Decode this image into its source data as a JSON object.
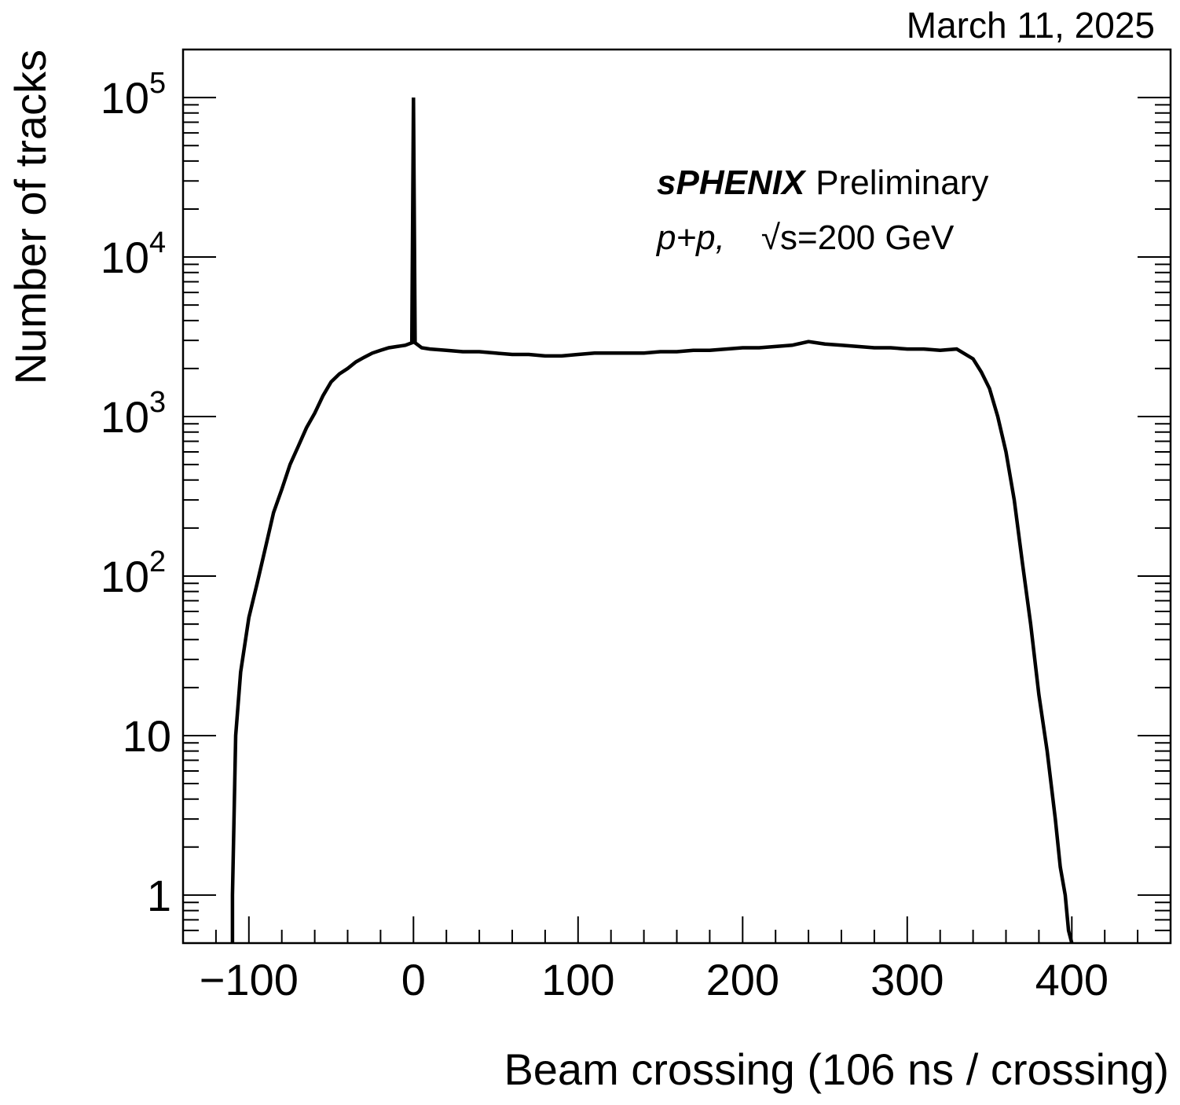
{
  "date_stamp": "March 11, 2025",
  "annotation": {
    "experiment": "sPHENIX",
    "status": "Preliminary",
    "system": "p+p,",
    "energy_symbol": "√s",
    "energy_value": "=200 GeV"
  },
  "chart_data": {
    "type": "histogram",
    "title": "",
    "xlabel": "Beam crossing (106 ns / crossing)",
    "ylabel": "Number of tracks",
    "xlim": [
      -140,
      460
    ],
    "ylim": [
      0.5,
      200000
    ],
    "yscale": "log",
    "grid": false,
    "x_ticks": [
      -100,
      0,
      100,
      200,
      300,
      400
    ],
    "x_tick_labels": [
      "−100",
      "0",
      "100",
      "200",
      "300",
      "400"
    ],
    "y_ticks": [
      1,
      10,
      100,
      1000,
      10000,
      100000
    ],
    "y_tick_labels": [
      {
        "base": "1",
        "exp": ""
      },
      {
        "base": "10",
        "exp": ""
      },
      {
        "base": "10",
        "exp": "2"
      },
      {
        "base": "10",
        "exp": "3"
      },
      {
        "base": "10",
        "exp": "4"
      },
      {
        "base": "10",
        "exp": "5"
      }
    ],
    "series": [
      {
        "color": "#000000",
        "x": [
          -110,
          -108,
          -105,
          -100,
          -95,
          -90,
          -85,
          -80,
          -75,
          -70,
          -65,
          -60,
          -55,
          -50,
          -45,
          -40,
          -35,
          -30,
          -25,
          -20,
          -15,
          -10,
          -5,
          -1,
          0,
          1,
          5,
          10,
          20,
          30,
          40,
          50,
          60,
          70,
          80,
          90,
          100,
          110,
          120,
          130,
          140,
          150,
          160,
          170,
          180,
          190,
          200,
          210,
          220,
          230,
          240,
          250,
          260,
          270,
          280,
          290,
          300,
          310,
          320,
          330,
          340,
          345,
          350,
          355,
          360,
          365,
          370,
          375,
          380,
          385,
          390,
          393,
          396,
          398,
          400,
          401
        ],
        "y": [
          1,
          10,
          25,
          55,
          90,
          150,
          250,
          350,
          500,
          650,
          850,
          1050,
          1350,
          1650,
          1850,
          2000,
          2200,
          2350,
          2500,
          2600,
          2700,
          2750,
          2800,
          2900,
          100000,
          2900,
          2700,
          2650,
          2600,
          2550,
          2550,
          2500,
          2450,
          2450,
          2400,
          2400,
          2450,
          2500,
          2500,
          2500,
          2500,
          2550,
          2550,
          2600,
          2600,
          2650,
          2700,
          2700,
          2750,
          2800,
          2950,
          2850,
          2800,
          2750,
          2700,
          2700,
          2650,
          2650,
          2600,
          2650,
          2300,
          1900,
          1500,
          1000,
          600,
          300,
          120,
          50,
          18,
          8,
          3,
          1.5,
          1,
          0.6,
          0.5
        ]
      }
    ]
  }
}
